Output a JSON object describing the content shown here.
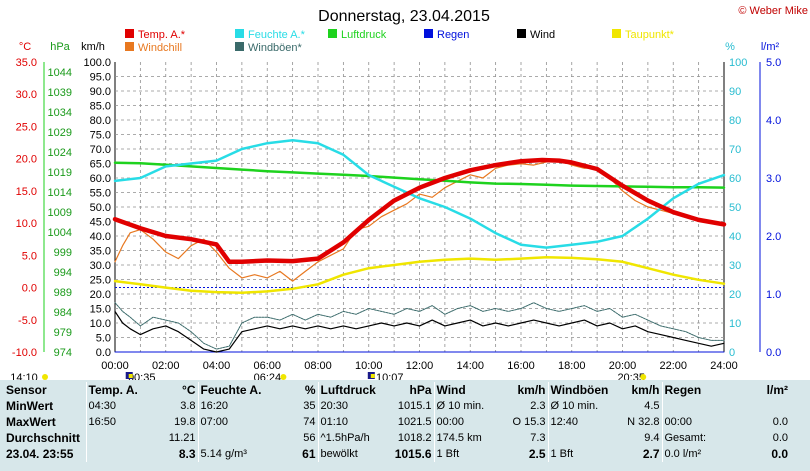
{
  "title": "Donnerstag, 23.04.2015",
  "copyright": "© Weber Mike",
  "unit_labels": {
    "temp": "°C",
    "press": "hPa",
    "speed": "km/h",
    "hum": "%",
    "rain": "l/m²"
  },
  "legend": [
    {
      "label": "Temp. A.*",
      "color": "#e00000"
    },
    {
      "label": "Feuchte A.*",
      "color": "#28dce6"
    },
    {
      "label": "Luftdruck",
      "color": "#1ed21e"
    },
    {
      "label": "Regen",
      "color": "#0010dc"
    },
    {
      "label": "Wind",
      "color": "#000000"
    },
    {
      "label": "Taupunkt*",
      "color": "#f0e600"
    },
    {
      "label": "Windchill",
      "color": "#e87820"
    },
    {
      "label": "Windböen*",
      "color": "#3a6a6a"
    }
  ],
  "markers": [
    {
      "label": "14:10"
    },
    {
      "label": "00:35"
    },
    {
      "label": "06:24"
    },
    {
      "label": "10:07"
    },
    {
      "label": "20:35"
    }
  ],
  "chart_data": {
    "type": "line",
    "x_ticks": [
      "00:00",
      "02:00",
      "04:00",
      "06:00",
      "08:00",
      "10:00",
      "12:00",
      "14:00",
      "16:00",
      "18:00",
      "20:00",
      "22:00",
      "24:00"
    ],
    "axes": {
      "temp": {
        "label": "°C",
        "range": [
          -10,
          35
        ],
        "ticks": [
          "35.0",
          "30.0",
          "25.0",
          "20.0",
          "15.0",
          "10.0",
          "5.0",
          "0.0",
          "-5.0",
          "-10.0"
        ]
      },
      "press": {
        "label": "hPa",
        "range": [
          974,
          1046.5
        ],
        "ticks": [
          "1044",
          "1039",
          "1034",
          "1029",
          "1024",
          "1019",
          "1014",
          "1009",
          "1004",
          "999",
          "994",
          "989",
          "984",
          "979",
          "974"
        ]
      },
      "speed": {
        "label": "km/h",
        "range": [
          0,
          100
        ],
        "ticks": [
          "100.0",
          "95.0",
          "90.0",
          "85.0",
          "80.0",
          "75.0",
          "70.0",
          "65.0",
          "60.0",
          "55.0",
          "50.0",
          "45.0",
          "40.0",
          "35.0",
          "30.0",
          "25.0",
          "20.0",
          "15.0",
          "10.0",
          "5.0",
          "0.0"
        ]
      },
      "hum": {
        "label": "%",
        "range": [
          0,
          100
        ],
        "ticks": [
          "100",
          "90",
          "80",
          "70",
          "60",
          "50",
          "40",
          "30",
          "20",
          "10",
          "0"
        ]
      },
      "rain": {
        "label": "l/m²",
        "range": [
          0,
          5
        ],
        "ticks": [
          "5.0",
          "4.0",
          "3.0",
          "2.0",
          "1.0",
          "0.0"
        ]
      }
    },
    "grid": true,
    "series": [
      {
        "name": "Temp. A.*",
        "axis": "temp",
        "hours": [
          0,
          1,
          2,
          3,
          4,
          4.5,
          5,
          6,
          7,
          8,
          9,
          10,
          11,
          12,
          13,
          14,
          15,
          16,
          16.83,
          17.5,
          18,
          19,
          20,
          21,
          22,
          23,
          24
        ],
        "values": [
          10.6,
          9.2,
          8.0,
          7.5,
          6.7,
          4.0,
          4.0,
          4.2,
          4.1,
          4.5,
          7.0,
          10.5,
          13.5,
          15.5,
          17.0,
          18.2,
          19.0,
          19.6,
          19.8,
          19.7,
          19.4,
          18.4,
          15.8,
          13.5,
          11.7,
          10.5,
          9.8
        ]
      },
      {
        "name": "Feuchte A.*",
        "axis": "hum",
        "hours": [
          0,
          1,
          2,
          3,
          4,
          5,
          6,
          7,
          8,
          9,
          10,
          11,
          12,
          13,
          14,
          15,
          16,
          17,
          18,
          19,
          20,
          21,
          22,
          23,
          24
        ],
        "values": [
          59,
          60,
          64,
          65,
          66,
          70,
          72,
          73,
          72,
          68,
          61,
          57,
          53,
          50,
          46,
          41,
          37,
          36,
          37,
          38,
          40,
          46,
          53,
          58,
          61
        ]
      },
      {
        "name": "Luftdruck",
        "axis": "press",
        "hours": [
          0,
          1,
          2,
          3,
          4,
          5,
          6,
          7,
          8,
          9,
          10,
          11,
          12,
          13,
          14,
          15,
          16,
          17,
          18,
          19,
          20,
          21,
          22,
          23,
          24
        ],
        "values": [
          1021.3,
          1021.2,
          1020.8,
          1020.4,
          1020.0,
          1019.6,
          1019.2,
          1018.9,
          1018.6,
          1018.3,
          1018.0,
          1017.6,
          1017.2,
          1016.8,
          1016.4,
          1016.1,
          1016.0,
          1015.8,
          1015.6,
          1015.5,
          1015.4,
          1015.3,
          1015.2,
          1015.2,
          1015.1
        ]
      },
      {
        "name": "Taupunkt*",
        "axis": "temp",
        "hours": [
          0,
          1,
          2,
          3,
          4,
          5,
          6,
          7,
          8,
          9,
          10,
          11,
          12,
          13,
          14,
          15,
          16,
          17,
          18,
          19,
          20,
          21,
          22,
          23,
          24
        ],
        "values": [
          1.0,
          0.5,
          0.0,
          -0.5,
          -0.7,
          -0.8,
          -0.6,
          -0.2,
          0.5,
          2.0,
          3.0,
          3.5,
          4.0,
          4.3,
          4.5,
          4.3,
          4.5,
          4.7,
          4.6,
          4.4,
          4.0,
          3.0,
          2.0,
          1.2,
          0.6
        ]
      },
      {
        "name": "Windchill",
        "axis": "temp",
        "hours": [
          0,
          0.3,
          0.6,
          1,
          1.5,
          2,
          2.5,
          3,
          3.5,
          4,
          4.5,
          5,
          5.5,
          6,
          6.5,
          7,
          7.5,
          8,
          8.5,
          9,
          9.5,
          10,
          10.5,
          11,
          11.5,
          12,
          12.5,
          13,
          13.5,
          14,
          14.5,
          15,
          15.5,
          16,
          16.5,
          17,
          17.5,
          18,
          18.5,
          19,
          19.5,
          20,
          20.5,
          21,
          21.5,
          22,
          22.5,
          23,
          23.5,
          24
        ],
        "values": [
          4.0,
          6.5,
          8.5,
          9.0,
          7.5,
          5.5,
          4.5,
          6.5,
          7.5,
          5.5,
          3.0,
          1.5,
          2.0,
          1.5,
          2.5,
          1.0,
          2.5,
          4.0,
          5.0,
          6.0,
          9.0,
          9.5,
          11.0,
          12.0,
          13.0,
          14.5,
          14.0,
          15.5,
          16.5,
          17.5,
          17.0,
          18.5,
          19.0,
          19.2,
          19.0,
          19.5,
          19.8,
          19.0,
          18.5,
          18.6,
          17.0,
          15.0,
          13.5,
          12.5,
          12.0,
          11.5,
          11.0,
          10.5,
          10.0,
          9.8
        ]
      },
      {
        "name": "Wind",
        "axis": "speed",
        "hours": [
          0,
          0.3,
          0.6,
          1,
          1.5,
          2,
          2.5,
          3,
          3.5,
          4,
          4.5,
          5,
          5.5,
          6,
          6.5,
          7,
          7.5,
          8,
          8.5,
          9,
          9.5,
          10,
          10.5,
          11,
          11.5,
          12,
          12.5,
          13,
          13.5,
          14,
          14.5,
          15,
          15.5,
          16,
          16.5,
          17,
          17.5,
          18,
          18.5,
          19,
          19.5,
          20,
          20.5,
          21,
          21.5,
          22,
          22.5,
          23,
          23.5,
          24
        ],
        "values": [
          14,
          10,
          8,
          6,
          8,
          9,
          7,
          4,
          1,
          0,
          1,
          7,
          8,
          9,
          8,
          9,
          8,
          9,
          8,
          9,
          8,
          9,
          10,
          9,
          10,
          9,
          11,
          9,
          10,
          11,
          9,
          10,
          9,
          10,
          11,
          10,
          9,
          10,
          11,
          9,
          10,
          8,
          9,
          7,
          6,
          5,
          4,
          3,
          2,
          3
        ]
      },
      {
        "name": "Windböen*",
        "axis": "speed",
        "hours": [
          0,
          0.3,
          0.6,
          1,
          1.5,
          2,
          2.5,
          3,
          3.5,
          4,
          4.5,
          5,
          5.5,
          6,
          6.5,
          7,
          7.5,
          8,
          8.5,
          9,
          9.5,
          10,
          10.5,
          11,
          11.5,
          12,
          12.5,
          13,
          13.5,
          14,
          14.5,
          15,
          15.5,
          16,
          16.5,
          17,
          17.5,
          18,
          18.5,
          19,
          19.5,
          20,
          20.5,
          21,
          21.5,
          22,
          22.5,
          23,
          23.5,
          24
        ],
        "values": [
          17,
          14,
          12,
          9,
          12,
          11,
          10,
          7,
          3,
          1,
          2,
          10,
          12,
          12,
          11,
          13,
          11,
          13,
          12,
          14,
          13,
          15,
          14,
          13,
          15,
          14,
          16,
          13,
          15,
          16,
          14,
          15,
          14,
          15,
          17,
          15,
          14,
          15,
          16,
          14,
          15,
          12,
          13,
          11,
          9,
          8,
          7,
          5,
          4,
          4
        ]
      },
      {
        "name": "Regen",
        "axis": "rain",
        "hours": [
          0,
          24
        ],
        "values": [
          0,
          0
        ]
      }
    ],
    "reference_line": {
      "axis": "temp",
      "value": 0
    }
  },
  "stats": {
    "headers": [
      "Sensor",
      "Temp. A.",
      "°C",
      "Feuchte A.",
      "%",
      "Luftdruck",
      "hPa",
      "Wind",
      "km/h",
      "Windböen",
      "km/h",
      "Regen",
      "l/m²"
    ],
    "rows": [
      [
        "MinWert",
        "04:30",
        "3.8",
        "16:20",
        "35",
        "20:30",
        "1015.1",
        "Ø 10 min.",
        "2.3",
        "Ø 10 min.",
        "4.5",
        "",
        ""
      ],
      [
        "MaxWert",
        "16:50",
        "19.8",
        "07:00",
        "74",
        "01:10",
        "1021.5",
        "00:00",
        "O 15.3",
        "12:40",
        "N 32.8",
        "00:00",
        "0.0"
      ],
      [
        "Durchschnitt",
        "",
        "11.21",
        "",
        "56",
        "^1.5hPa/h",
        "1018.2",
        "174.5 km",
        "7.3",
        "",
        "9.4",
        "Gesamt:",
        "0.0"
      ],
      [
        "23.04.  23:55",
        "",
        "8.3",
        "5.14 g/m³",
        "61",
        "bewölkt",
        "1015.6",
        "1 Bft",
        "2.5",
        "1 Bft",
        "2.7",
        "0.0 l/m²",
        "0.0"
      ]
    ]
  }
}
